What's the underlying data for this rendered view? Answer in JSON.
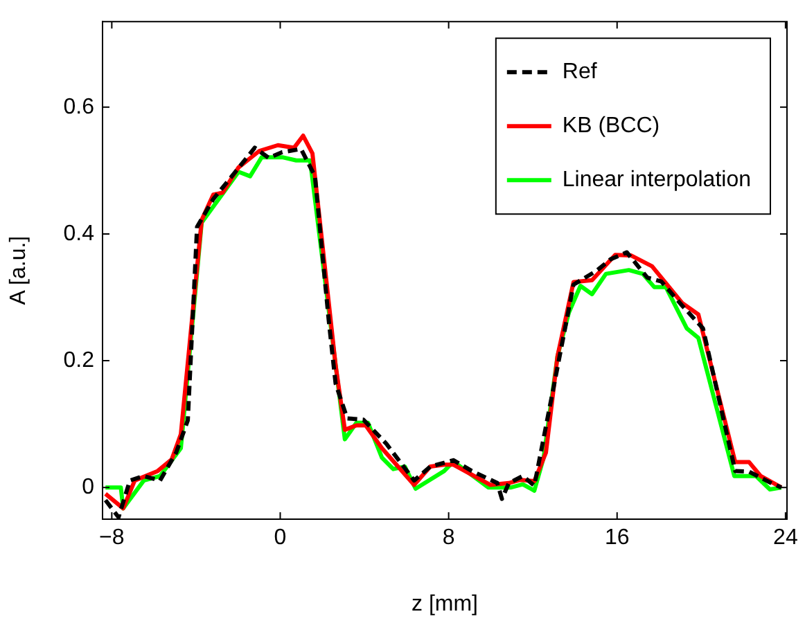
{
  "chart_data": {
    "type": "line",
    "xlabel": "z [mm]",
    "ylabel": "A [a.u.]",
    "xlim": [
      -8.44,
      24.07
    ],
    "ylim": [
      -0.05,
      0.735
    ],
    "xticks": [
      -8,
      0,
      8,
      16,
      24
    ],
    "yticks": [
      0,
      0.2,
      0.4,
      0.6
    ],
    "grid": false,
    "legend": "top right",
    "marker": "none",
    "series": [
      {
        "name": "Ref",
        "color": "#000000",
        "line_style": "dashed",
        "x": [
          -8.3,
          -7.68,
          -7.14,
          -6.48,
          -5.71,
          -4.94,
          -4.39,
          -3.95,
          -3.18,
          -2.08,
          -1.21,
          -0.55,
          0.1,
          0.99,
          1.65,
          2.3,
          2.63,
          3.18,
          3.95,
          5.04,
          6.36,
          7.13,
          8.23,
          9.1,
          10.31,
          10.53,
          10.86,
          11.52,
          12.07,
          13.06,
          13.93,
          15.03,
          15.69,
          16.46,
          17.44,
          18.1,
          19.09,
          20.08,
          21.61,
          22.27,
          23.37,
          23.8
        ],
        "values": [
          -0.02,
          -0.047,
          0.011,
          0.018,
          0.011,
          0.055,
          0.106,
          0.411,
          0.455,
          0.5,
          0.536,
          0.52,
          0.529,
          0.534,
          0.491,
          0.265,
          0.164,
          0.109,
          0.107,
          0.069,
          0.011,
          0.033,
          0.043,
          0.026,
          0.007,
          -0.018,
          0.007,
          0.018,
          0.003,
          0.171,
          0.32,
          0.342,
          0.36,
          0.371,
          0.331,
          0.325,
          0.287,
          0.251,
          0.026,
          0.025,
          0.006,
          0
        ]
      },
      {
        "name": "KB (BCC)",
        "color": "#ff0000",
        "line_style": "solid",
        "x": [
          -8.3,
          -7.46,
          -6.91,
          -5.82,
          -5.16,
          -4.72,
          -3.73,
          -3.18,
          -2.74,
          -1.98,
          -0.99,
          -0.11,
          0.66,
          1.09,
          1.53,
          2.63,
          3.07,
          3.62,
          4.06,
          4.83,
          6.36,
          7.13,
          7.79,
          8.23,
          9.99,
          10.86,
          11.41,
          12.07,
          12.62,
          13.17,
          13.93,
          14.81,
          15.91,
          16.67,
          17.66,
          19.09,
          19.86,
          21.61,
          22.27,
          22.82,
          23.8
        ],
        "values": [
          -0.01,
          -0.033,
          0.011,
          0.026,
          0.044,
          0.084,
          0.422,
          0.462,
          0.465,
          0.505,
          0.531,
          0.54,
          0.536,
          0.555,
          0.527,
          0.193,
          0.091,
          0.098,
          0.098,
          0.062,
          0.004,
          0.033,
          0.036,
          0.036,
          0.004,
          0.007,
          0.012,
          0.01,
          0.055,
          0.207,
          0.324,
          0.327,
          0.367,
          0.366,
          0.349,
          0.291,
          0.273,
          0.04,
          0.04,
          0.018,
          0
        ]
      },
      {
        "name": "Linear interpolation",
        "color": "#00ff00",
        "line_style": "solid",
        "x": [
          -8.3,
          -7.57,
          -7.46,
          -6.48,
          -5.71,
          -4.72,
          -3.73,
          -1.98,
          -1.43,
          -0.88,
          0.1,
          0.76,
          1.42,
          3.07,
          3.62,
          4.17,
          4.83,
          5.37,
          5.92,
          6.43,
          7.79,
          8.23,
          9.88,
          10.97,
          11.52,
          12.07,
          12.51,
          13.17,
          13.71,
          14.26,
          14.81,
          15.47,
          16.56,
          17.22,
          17.77,
          18.32,
          19.31,
          19.86,
          21.57,
          22.6,
          23.26,
          23.8
        ],
        "values": [
          0,
          0,
          -0.033,
          0.011,
          0.018,
          0.062,
          0.418,
          0.498,
          0.491,
          0.521,
          0.521,
          0.516,
          0.516,
          0.076,
          0.102,
          0.102,
          0.047,
          0.029,
          0.033,
          -0.002,
          0.026,
          0.041,
          0,
          0,
          0.005,
          -0.005,
          0.047,
          0.207,
          0.276,
          0.318,
          0.305,
          0.337,
          0.343,
          0.337,
          0.316,
          0.316,
          0.251,
          0.236,
          0.018,
          0.018,
          -0.003,
          0
        ]
      }
    ]
  }
}
